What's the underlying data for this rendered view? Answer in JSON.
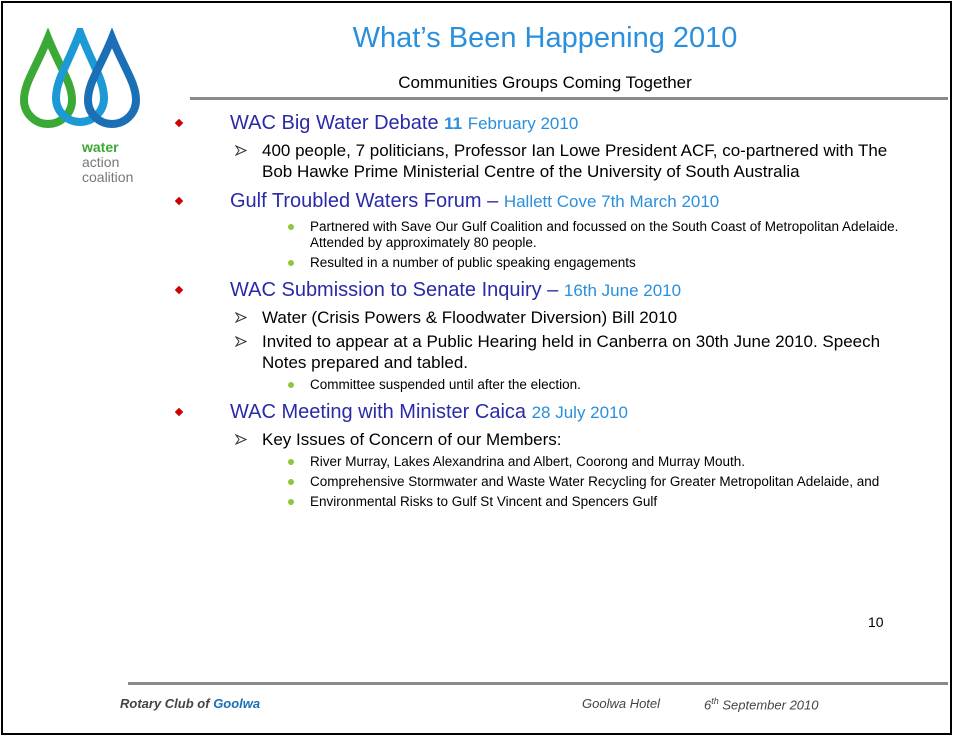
{
  "logo": {
    "lines": [
      "water",
      "action",
      "coalition"
    ]
  },
  "title": "What’s Been Happening 2010",
  "subtitle": "Communities Groups Coming Together",
  "sections": [
    {
      "heading": "WAC Big Water Debate",
      "date_bold": "11",
      "date": "February 2010",
      "items": [
        {
          "kind": "arrow",
          "text": "400 people, 7 politicians, Professor Ian Lowe President ACF, co-partnered with The Bob Hawke Prime Ministerial Centre of the University of South Australia"
        }
      ]
    },
    {
      "heading": "Gulf Troubled Waters Forum –",
      "date": "Hallett Cove 7th March 2010",
      "items": [
        {
          "kind": "dot",
          "text": "Partnered with Save Our Gulf Coalition and focussed on the South Coast of Metropolitan Adelaide. Attended by approximately 80 people."
        },
        {
          "kind": "dot",
          "text": "Resulted in a number of public speaking engagements"
        }
      ]
    },
    {
      "heading": "WAC Submission to Senate Inquiry –",
      "date": "16th June 2010",
      "items": [
        {
          "kind": "arrow",
          "text": "Water (Crisis Powers & Floodwater Diversion) Bill 2010"
        },
        {
          "kind": "arrow",
          "text": "Invited to appear at a Public Hearing held in Canberra on 30th June 2010. Speech Notes prepared and tabled."
        },
        {
          "kind": "dot",
          "text": "Committee suspended until after the election."
        }
      ]
    },
    {
      "heading": "WAC Meeting with Minister Caica",
      "date": "28 July 2010",
      "items": [
        {
          "kind": "arrow",
          "text": "Key Issues of Concern of our Members:"
        },
        {
          "kind": "dot",
          "text": "River Murray, Lakes Alexandrina and Albert, Coorong and Murray Mouth."
        },
        {
          "kind": "dot",
          "text": "Comprehensive Stormwater and Waste Water Recycling for Greater Metropolitan Adelaide, and"
        },
        {
          "kind": "dot",
          "text": "Environmental Risks to Gulf St Vincent and Spencers Gulf"
        }
      ]
    }
  ],
  "page_number": "10",
  "footer": {
    "club": "Rotary Club of",
    "club_place": "Goolwa",
    "venue": "Goolwa Hotel",
    "date_day": "6",
    "date_suffix": "th",
    "date_rest": "September 2010"
  }
}
